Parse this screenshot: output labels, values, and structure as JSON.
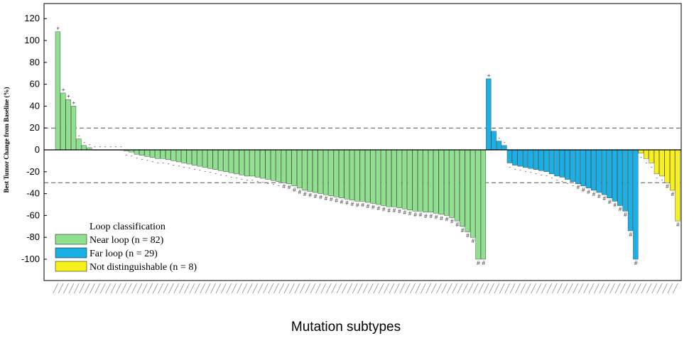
{
  "chart_data": {
    "type": "bar",
    "ylabel": "Best Tumor Change from Baseline (%)",
    "xlabel": "Mutation subtypes",
    "ylim": [
      -120,
      130
    ],
    "yticks": [
      120,
      100,
      80,
      60,
      40,
      20,
      0,
      -20,
      -40,
      -60,
      -80,
      -100
    ],
    "reference_lines": [
      20,
      -30
    ],
    "legend": {
      "title": "Loop classification",
      "position": "bottom-left",
      "entries": [
        {
          "label": "Near loop (n = 82)",
          "color": "#8fe08f"
        },
        {
          "label": "Far loop (n = 29)",
          "color": "#1ab0e6"
        },
        {
          "label": "Not distinguishable (n = 8)",
          "color": "#f5f01e"
        }
      ]
    },
    "series": [
      {
        "group": "near",
        "color": "#8fe08f",
        "values": [
          108,
          52,
          46,
          40,
          10,
          4,
          2,
          0,
          0,
          0,
          0,
          0,
          0,
          -1,
          -2,
          -4,
          -5,
          -6,
          -7,
          -8,
          -8,
          -9,
          -10,
          -11,
          -12,
          -13,
          -14,
          -15,
          -16,
          -17,
          -18,
          -19,
          -20,
          -21,
          -22,
          -23,
          -24,
          -24,
          -25,
          -26,
          -27,
          -28,
          -29,
          -30,
          -31,
          -33,
          -35,
          -37,
          -38,
          -39,
          -40,
          -41,
          -42,
          -43,
          -44,
          -45,
          -46,
          -47,
          -47,
          -48,
          -49,
          -50,
          -51,
          -52,
          -52,
          -53,
          -54,
          -55,
          -56,
          -56,
          -57,
          -57,
          -58,
          -59,
          -60,
          -62,
          -65,
          -70,
          -75,
          -80,
          -100,
          -100
        ]
      },
      {
        "group": "far",
        "color": "#1ab0e6",
        "values": [
          65,
          17,
          8,
          4,
          -12,
          -14,
          -15,
          -16,
          -17,
          -18,
          -19,
          -20,
          -22,
          -24,
          -25,
          -27,
          -29,
          -31,
          -33,
          -35,
          -37,
          -39,
          -41,
          -44,
          -47,
          -51,
          -56,
          -74,
          -100
        ]
      },
      {
        "group": "nd",
        "color": "#f5f01e",
        "values": [
          -3,
          -8,
          -12,
          -22,
          -24,
          -30,
          -37,
          -65
        ]
      }
    ],
    "marker_symbols": [
      "+",
      "#",
      "●",
      "-"
    ]
  }
}
